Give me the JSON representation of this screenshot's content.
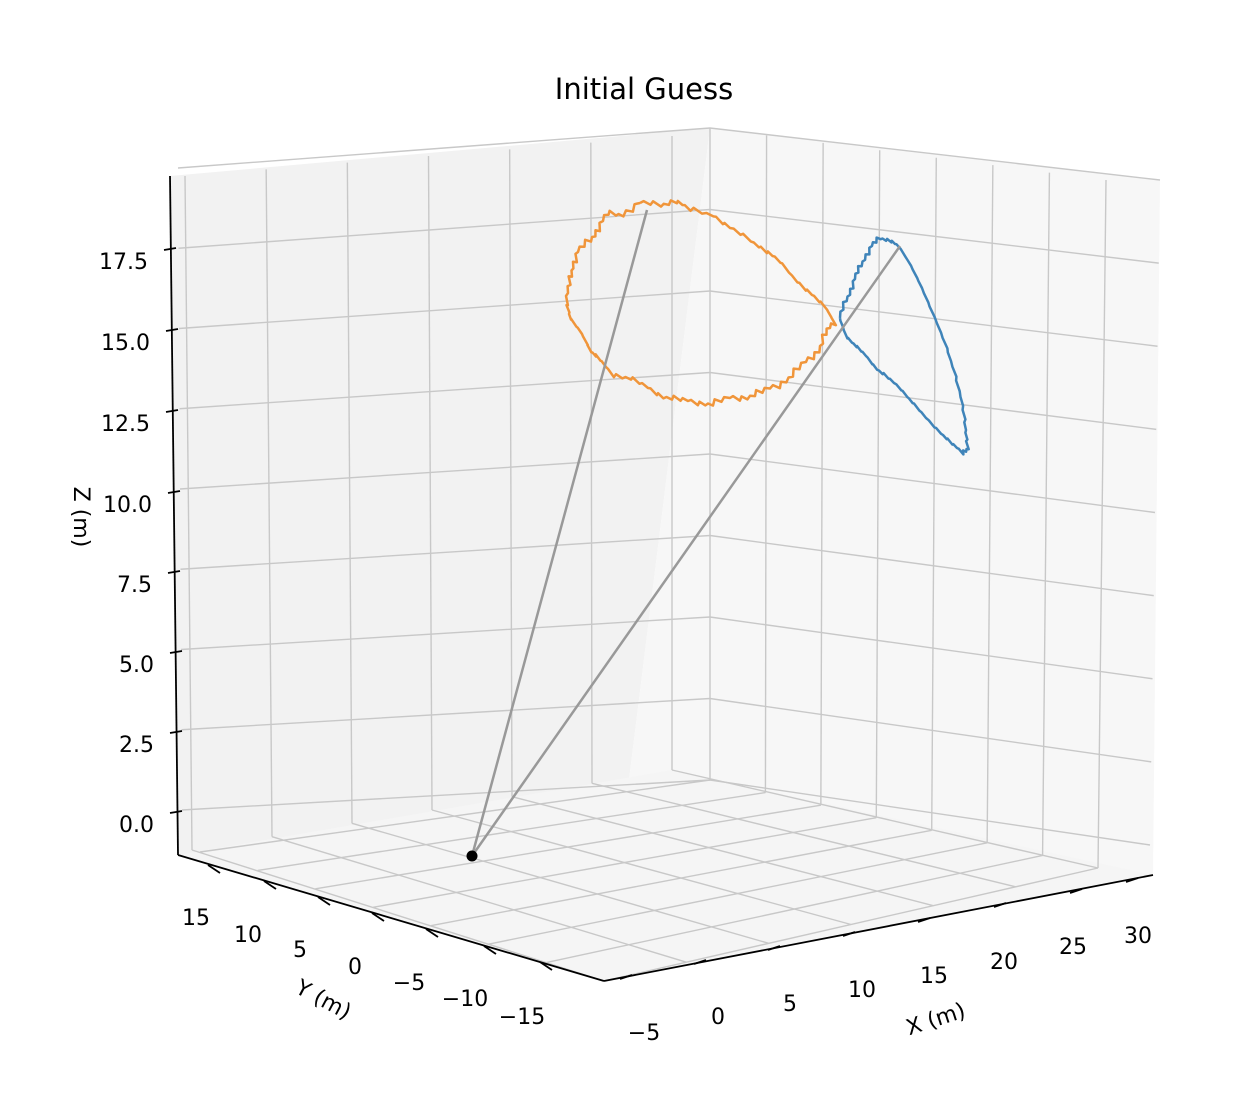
{
  "chart_data": {
    "type": "line3d",
    "title": "Initial Guess",
    "xlabel": "X (m)",
    "ylabel": "Y (m)",
    "zlabel": "Z (m)",
    "xticks": [
      "−5",
      "0",
      "5",
      "10",
      "15",
      "20",
      "25",
      "30"
    ],
    "yticks": [
      "15",
      "10",
      "5",
      "0",
      "−5",
      "−10",
      "−15"
    ],
    "zticks": [
      "0.0",
      "2.5",
      "5.0",
      "7.5",
      "10.0",
      "12.5",
      "15.0",
      "17.5"
    ],
    "grid": true,
    "colors": {
      "orange_loop": "#f0953a",
      "blue_loop": "#3f84b9",
      "tether": "#999999",
      "anchor": "#000000"
    },
    "anchor_point": {
      "x": 0,
      "y": 0,
      "z": 0
    }
  }
}
